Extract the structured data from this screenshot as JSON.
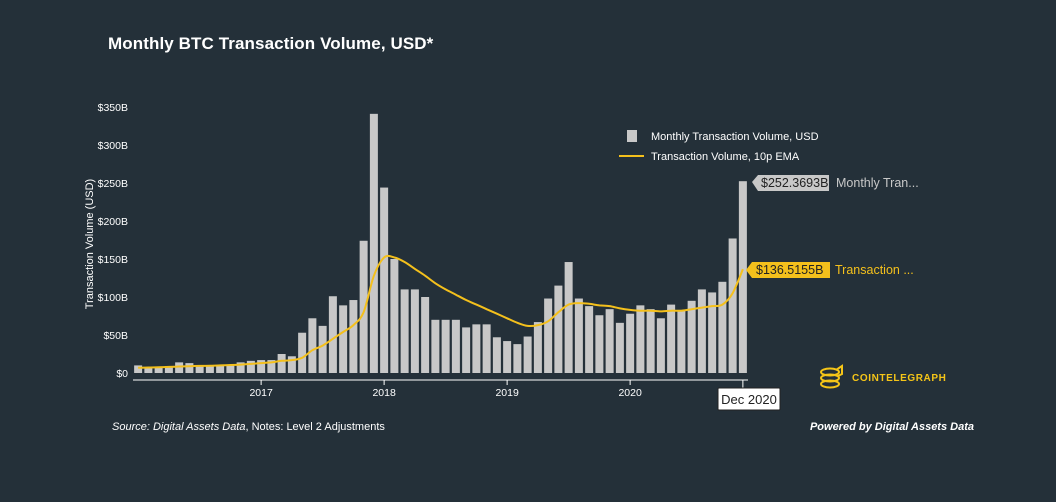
{
  "colors": {
    "background": "#243039",
    "bar": "#c8c8c8",
    "ema": "#f4c01c",
    "text": "#ffffff"
  },
  "title": "Monthly BTC Transaction Volume, USD*",
  "legend": {
    "bar_label": "Monthly Transaction Volume, USD",
    "line_label": "Transaction Volume, 10p EMA"
  },
  "callouts": {
    "bar_value": "$252.3693B",
    "bar_label": "Monthly Tran...",
    "ema_value": "$136.5155B",
    "ema_label": "Transaction ..."
  },
  "crosshair_label": "Dec 2020",
  "footer": {
    "source_prefix": "Source: Digital Assets Data",
    "source_notes": ", Notes: Level 2 Adjustments",
    "powered_by": "Powered by Digital Assets Data"
  },
  "logo": {
    "text": "COINTELEGRAPH",
    "icon": "coin-stack-icon"
  },
  "chart_data": {
    "type": "bar",
    "ylabel": "Transaction Volume (USD)",
    "ylim": [
      0,
      350
    ],
    "yticks": [
      0,
      50,
      100,
      150,
      200,
      250,
      300,
      350
    ],
    "ytick_labels": [
      "$0",
      "$50B",
      "$100B",
      "$150B",
      "$200B",
      "$250B",
      "$300B",
      "$350B"
    ],
    "xtick_labels": [
      "2017",
      "2018",
      "2019",
      "2020"
    ],
    "xtick_categories": [
      "Jan 2017",
      "Jan 2018",
      "Jan 2019",
      "Jan 2020"
    ],
    "grid": false,
    "legend_position": "top-right",
    "categories": [
      "Jan 2016",
      "Feb 2016",
      "Mar 2016",
      "Apr 2016",
      "May 2016",
      "Jun 2016",
      "Jul 2016",
      "Aug 2016",
      "Sep 2016",
      "Oct 2016",
      "Nov 2016",
      "Dec 2016",
      "Jan 2017",
      "Feb 2017",
      "Mar 2017",
      "Apr 2017",
      "May 2017",
      "Jun 2017",
      "Jul 2017",
      "Aug 2017",
      "Sep 2017",
      "Oct 2017",
      "Nov 2017",
      "Dec 2017",
      "Jan 2018",
      "Feb 2018",
      "Mar 2018",
      "Apr 2018",
      "May 2018",
      "Jun 2018",
      "Jul 2018",
      "Aug 2018",
      "Sep 2018",
      "Oct 2018",
      "Nov 2018",
      "Dec 2018",
      "Jan 2019",
      "Feb 2019",
      "Mar 2019",
      "Apr 2019",
      "May 2019",
      "Jun 2019",
      "Jul 2019",
      "Aug 2019",
      "Sep 2019",
      "Oct 2019",
      "Nov 2019",
      "Dec 2019",
      "Jan 2020",
      "Feb 2020",
      "Mar 2020",
      "Apr 2020",
      "May 2020",
      "Jun 2020",
      "Jul 2020",
      "Aug 2020",
      "Sep 2020",
      "Oct 2020",
      "Nov 2020",
      "Dec 2020"
    ],
    "series": [
      {
        "name": "Monthly Transaction Volume, USD",
        "type": "bar",
        "values": [
          10,
          8,
          8,
          9,
          14,
          13,
          10,
          9,
          10,
          11,
          14,
          16,
          17,
          17,
          25,
          22,
          53,
          72,
          62,
          101,
          89,
          96,
          174,
          341,
          244,
          150,
          110,
          110,
          100,
          70,
          70,
          70,
          60,
          64,
          64,
          47,
          42,
          38,
          48,
          67,
          98,
          115,
          146,
          98,
          88,
          76,
          84,
          66,
          78,
          89,
          84,
          72,
          90,
          83,
          95,
          110,
          106,
          120,
          177,
          252.3693
        ]
      },
      {
        "name": "Transaction Volume, 10p EMA",
        "type": "line",
        "values": [
          7,
          7.2,
          7.5,
          8,
          8.5,
          9,
          9.3,
          9.5,
          10,
          10.5,
          11,
          12,
          13,
          14,
          16,
          17,
          20,
          30,
          36,
          45,
          54,
          63,
          80,
          128,
          152,
          152,
          146,
          137,
          128,
          118,
          110,
          103,
          96,
          90,
          84,
          78,
          72,
          66,
          62,
          63,
          68,
          80,
          90,
          92,
          91,
          89,
          88,
          85,
          83,
          82,
          82,
          81,
          82,
          82,
          84,
          86,
          88,
          90,
          105,
          136.5155
        ]
      }
    ]
  }
}
